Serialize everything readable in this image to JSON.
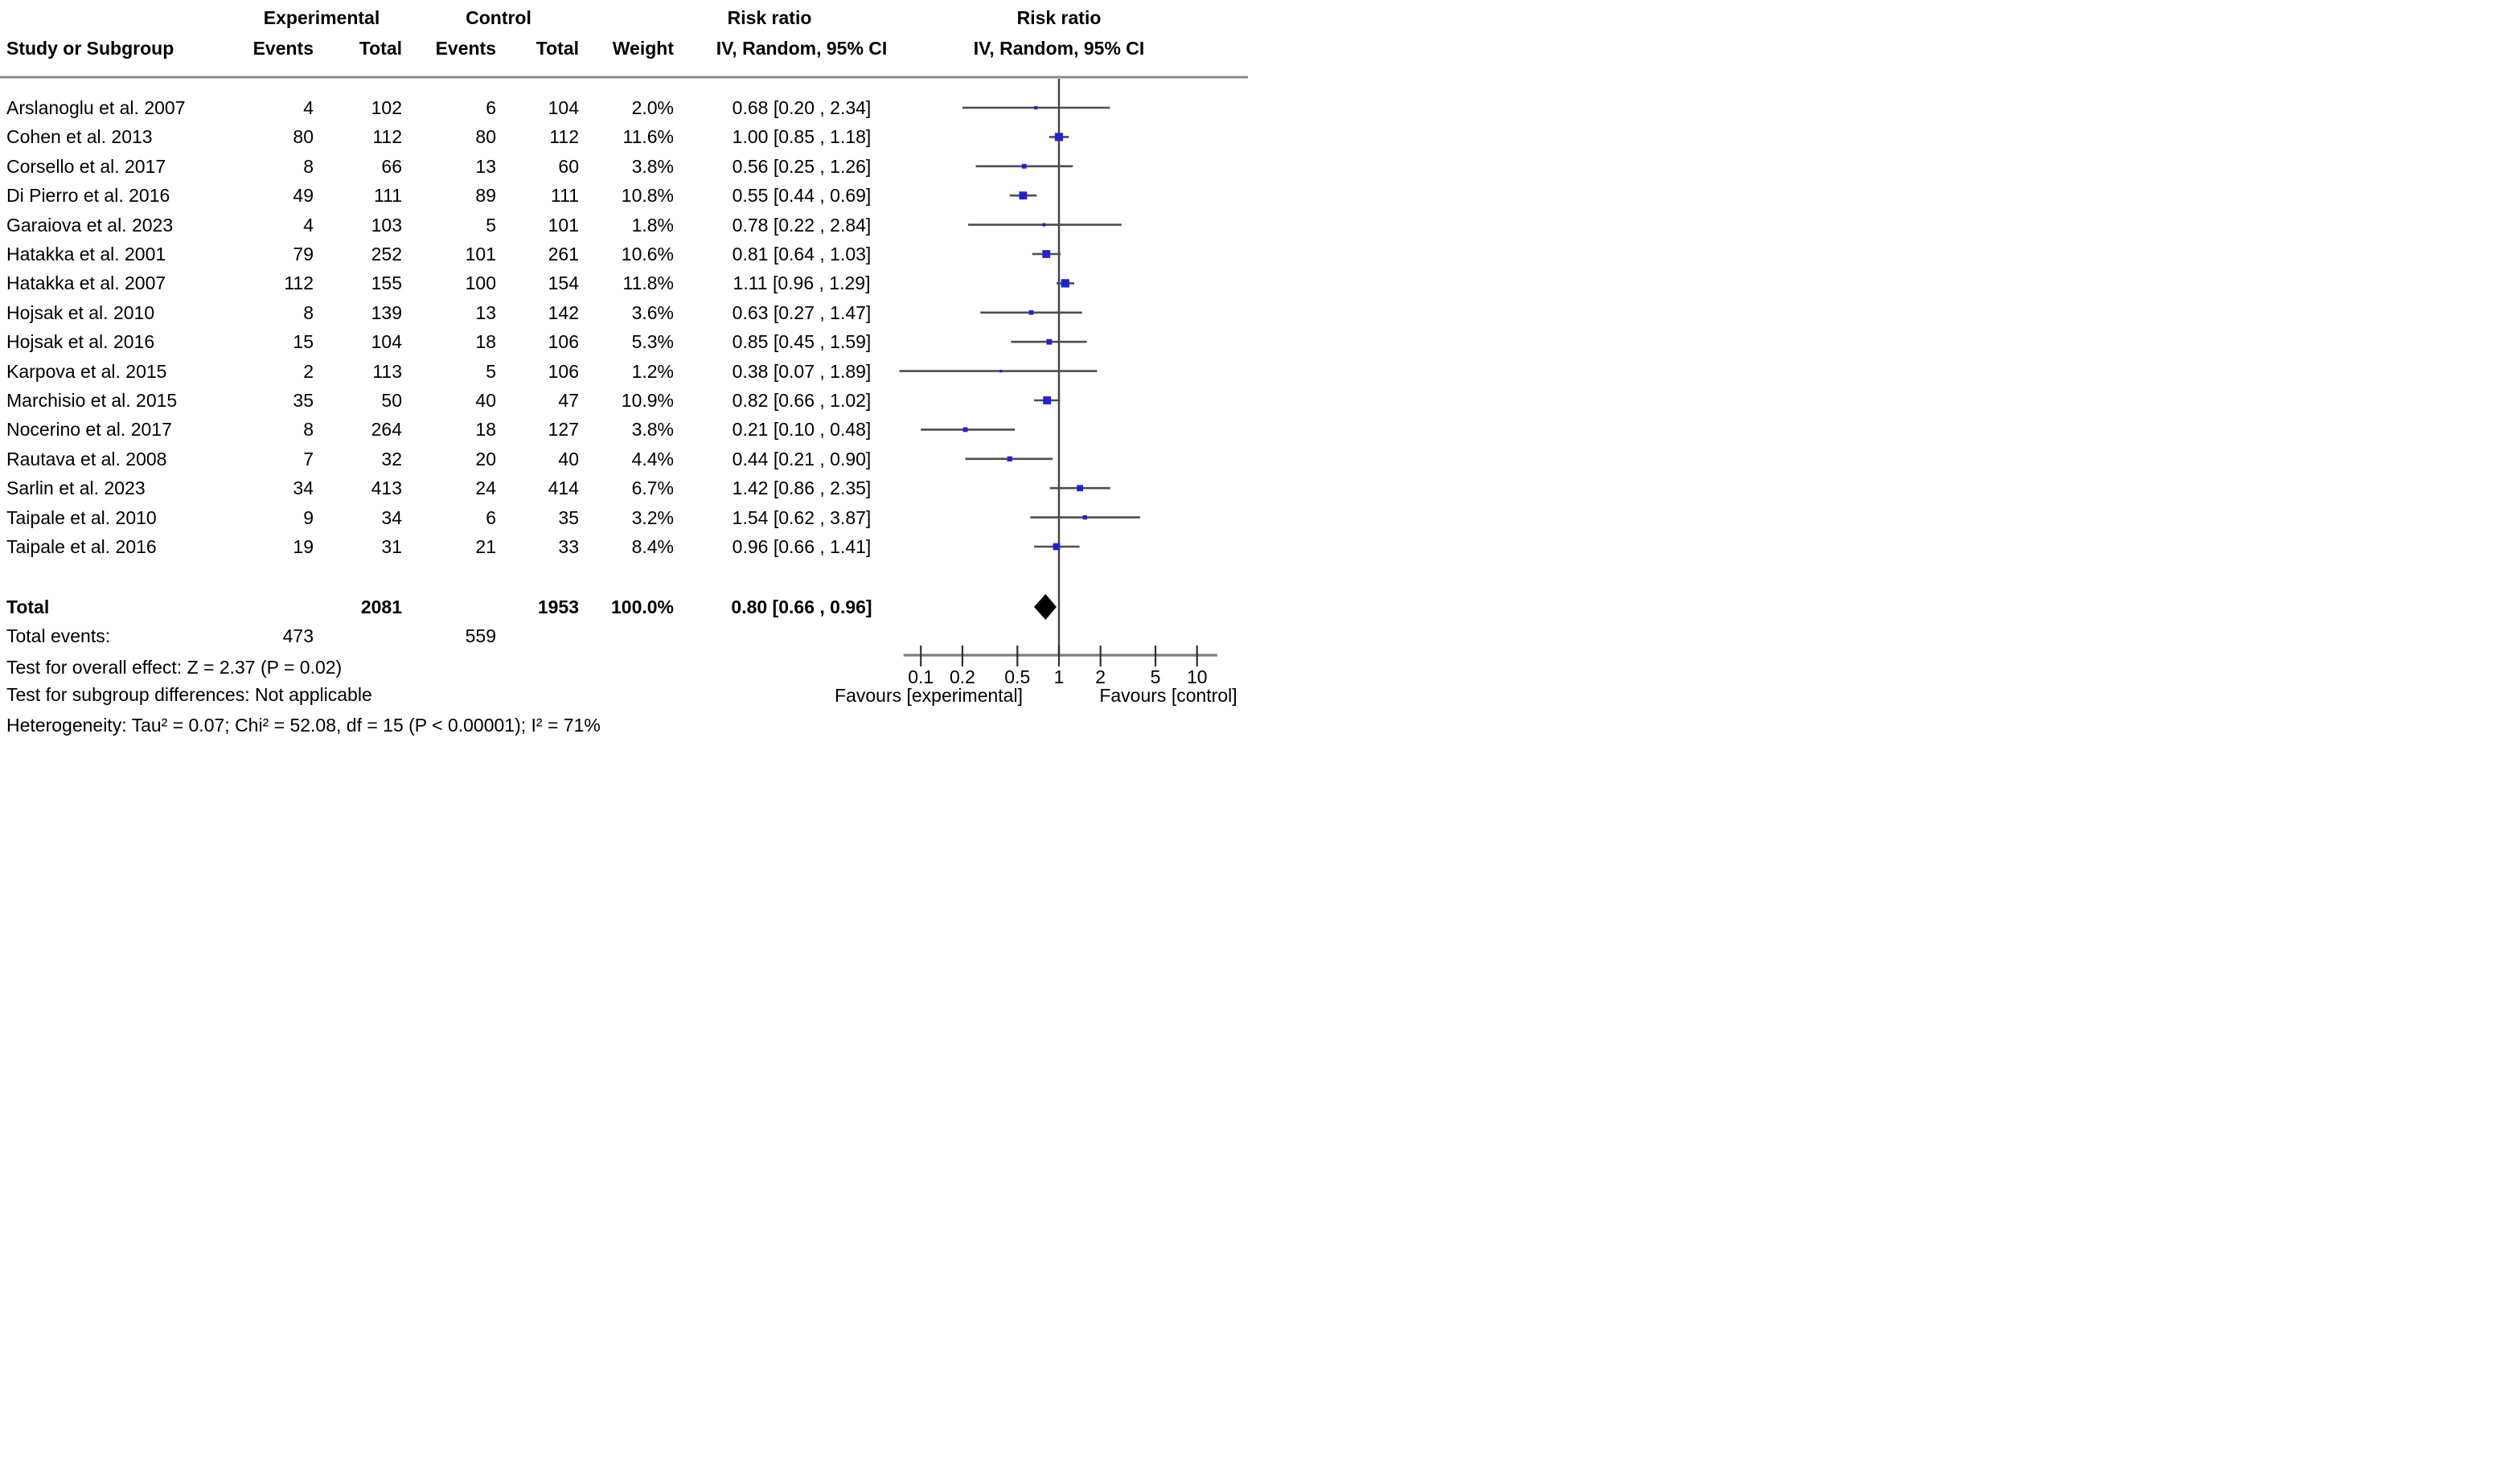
{
  "header": {
    "study_col": "Study or Subgroup",
    "experimental": "Experimental",
    "control": "Control",
    "events": "Events",
    "total": "Total",
    "weight": "Weight",
    "risk_ratio": "Risk ratio",
    "ci_method": "IV, Random, 95% CI"
  },
  "chart_data": {
    "type": "forest",
    "effect_measure": "Risk ratio",
    "model": "IV, Random, 95% CI",
    "x_scale": "log",
    "x_ticks": [
      "0.1",
      "0.2",
      "0.5",
      "1",
      "2",
      "5",
      "10"
    ],
    "x_tick_values": [
      0.1,
      0.2,
      0.5,
      1,
      2,
      5,
      10
    ],
    "x_range": [
      0.075,
      14
    ],
    "reference_line": 1,
    "xlabel_left": "Favours [experimental]",
    "xlabel_right": "Favours [control]",
    "studies": [
      {
        "study": "Arslanoglu et al. 2007",
        "exp_events": "4",
        "exp_total": "102",
        "ctrl_events": "6",
        "ctrl_total": "104",
        "weight": "2.0%",
        "weight_value": 2.0,
        "ci_label": "0.68 [0.20 , 2.34]",
        "rr": 0.68,
        "lo": 0.2,
        "hi": 2.34
      },
      {
        "study": "Cohen et al. 2013",
        "exp_events": "80",
        "exp_total": "112",
        "ctrl_events": "80",
        "ctrl_total": "112",
        "weight": "11.6%",
        "weight_value": 11.6,
        "ci_label": "1.00 [0.85 , 1.18]",
        "rr": 1.0,
        "lo": 0.85,
        "hi": 1.18
      },
      {
        "study": "Corsello et al. 2017",
        "exp_events": "8",
        "exp_total": "66",
        "ctrl_events": "13",
        "ctrl_total": "60",
        "weight": "3.8%",
        "weight_value": 3.8,
        "ci_label": "0.56 [0.25 , 1.26]",
        "rr": 0.56,
        "lo": 0.25,
        "hi": 1.26
      },
      {
        "study": "Di Pierro et al. 2016",
        "exp_events": "49",
        "exp_total": "111",
        "ctrl_events": "89",
        "ctrl_total": "111",
        "weight": "10.8%",
        "weight_value": 10.8,
        "ci_label": "0.55 [0.44 , 0.69]",
        "rr": 0.55,
        "lo": 0.44,
        "hi": 0.69
      },
      {
        "study": "Garaiova et al. 2023",
        "exp_events": "4",
        "exp_total": "103",
        "ctrl_events": "5",
        "ctrl_total": "101",
        "weight": "1.8%",
        "weight_value": 1.8,
        "ci_label": "0.78 [0.22 , 2.84]",
        "rr": 0.78,
        "lo": 0.22,
        "hi": 2.84
      },
      {
        "study": "Hatakka et al. 2001",
        "exp_events": "79",
        "exp_total": "252",
        "ctrl_events": "101",
        "ctrl_total": "261",
        "weight": "10.6%",
        "weight_value": 10.6,
        "ci_label": "0.81 [0.64 , 1.03]",
        "rr": 0.81,
        "lo": 0.64,
        "hi": 1.03
      },
      {
        "study": "Hatakka et al. 2007",
        "exp_events": "112",
        "exp_total": "155",
        "ctrl_events": "100",
        "ctrl_total": "154",
        "weight": "11.8%",
        "weight_value": 11.8,
        "ci_label": "1.11 [0.96 , 1.29]",
        "rr": 1.11,
        "lo": 0.96,
        "hi": 1.29
      },
      {
        "study": "Hojsak et al. 2010",
        "exp_events": "8",
        "exp_total": "139",
        "ctrl_events": "13",
        "ctrl_total": "142",
        "weight": "3.6%",
        "weight_value": 3.6,
        "ci_label": "0.63 [0.27 , 1.47]",
        "rr": 0.63,
        "lo": 0.27,
        "hi": 1.47
      },
      {
        "study": "Hojsak et al. 2016",
        "exp_events": "15",
        "exp_total": "104",
        "ctrl_events": "18",
        "ctrl_total": "106",
        "weight": "5.3%",
        "weight_value": 5.3,
        "ci_label": "0.85 [0.45 , 1.59]",
        "rr": 0.85,
        "lo": 0.45,
        "hi": 1.59
      },
      {
        "study": "Karpova et al. 2015",
        "exp_events": "2",
        "exp_total": "113",
        "ctrl_events": "5",
        "ctrl_total": "106",
        "weight": "1.2%",
        "weight_value": 1.2,
        "ci_label": "0.38 [0.07 , 1.89]",
        "rr": 0.38,
        "lo": 0.07,
        "hi": 1.89
      },
      {
        "study": "Marchisio et al. 2015",
        "exp_events": "35",
        "exp_total": "50",
        "ctrl_events": "40",
        "ctrl_total": "47",
        "weight": "10.9%",
        "weight_value": 10.9,
        "ci_label": "0.82 [0.66 , 1.02]",
        "rr": 0.82,
        "lo": 0.66,
        "hi": 1.02
      },
      {
        "study": "Nocerino et al. 2017",
        "exp_events": "8",
        "exp_total": "264",
        "ctrl_events": "18",
        "ctrl_total": "127",
        "weight": "3.8%",
        "weight_value": 3.8,
        "ci_label": "0.21 [0.10 , 0.48]",
        "rr": 0.21,
        "lo": 0.1,
        "hi": 0.48
      },
      {
        "study": "Rautava et al. 2008",
        "exp_events": "7",
        "exp_total": "32",
        "ctrl_events": "20",
        "ctrl_total": "40",
        "weight": "4.4%",
        "weight_value": 4.4,
        "ci_label": "0.44 [0.21 , 0.90]",
        "rr": 0.44,
        "lo": 0.21,
        "hi": 0.9
      },
      {
        "study": "Sarlin et al. 2023",
        "exp_events": "34",
        "exp_total": "413",
        "ctrl_events": "24",
        "ctrl_total": "414",
        "weight": "6.7%",
        "weight_value": 6.7,
        "ci_label": "1.42 [0.86 , 2.35]",
        "rr": 1.42,
        "lo": 0.86,
        "hi": 2.35
      },
      {
        "study": "Taipale et al. 2010",
        "exp_events": "9",
        "exp_total": "34",
        "ctrl_events": "6",
        "ctrl_total": "35",
        "weight": "3.2%",
        "weight_value": 3.2,
        "ci_label": "1.54 [0.62 , 3.87]",
        "rr": 1.54,
        "lo": 0.62,
        "hi": 3.87
      },
      {
        "study": "Taipale et al. 2016",
        "exp_events": "19",
        "exp_total": "31",
        "ctrl_events": "21",
        "ctrl_total": "33",
        "weight": "8.4%",
        "weight_value": 8.4,
        "ci_label": "0.96 [0.66 , 1.41]",
        "rr": 0.96,
        "lo": 0.66,
        "hi": 1.41
      }
    ],
    "total": {
      "label": "Total",
      "exp_total": "2081",
      "ctrl_total": "1953",
      "weight": "100.0%",
      "ci_label": "0.80 [0.66 , 0.96]",
      "rr": 0.8,
      "lo": 0.66,
      "hi": 0.96
    }
  },
  "totals_row": {
    "total_events_label": "Total events:",
    "total_events_exp": "473",
    "total_events_ctrl": "559"
  },
  "footnotes": {
    "overall_effect": "Test for overall effect: Z = 2.37 (P = 0.02)",
    "subgroup_differences": "Test for subgroup differences: Not applicable",
    "heterogeneity": "Heterogeneity: Tau² = 0.07; Chi² = 52.08, df = 15 (P < 0.00001); I² = 71%"
  },
  "colors": {
    "marker_blue": "#2323cd",
    "ci_line_gray": "#4d4d4d",
    "reference_line_gray": "#404040",
    "axis_gray": "#7d7d7d",
    "tick_dark": "#2e2e2e",
    "header_rule_gray": "#8a8a8a",
    "diamond_black": "#000000",
    "text_black": "#000000"
  }
}
